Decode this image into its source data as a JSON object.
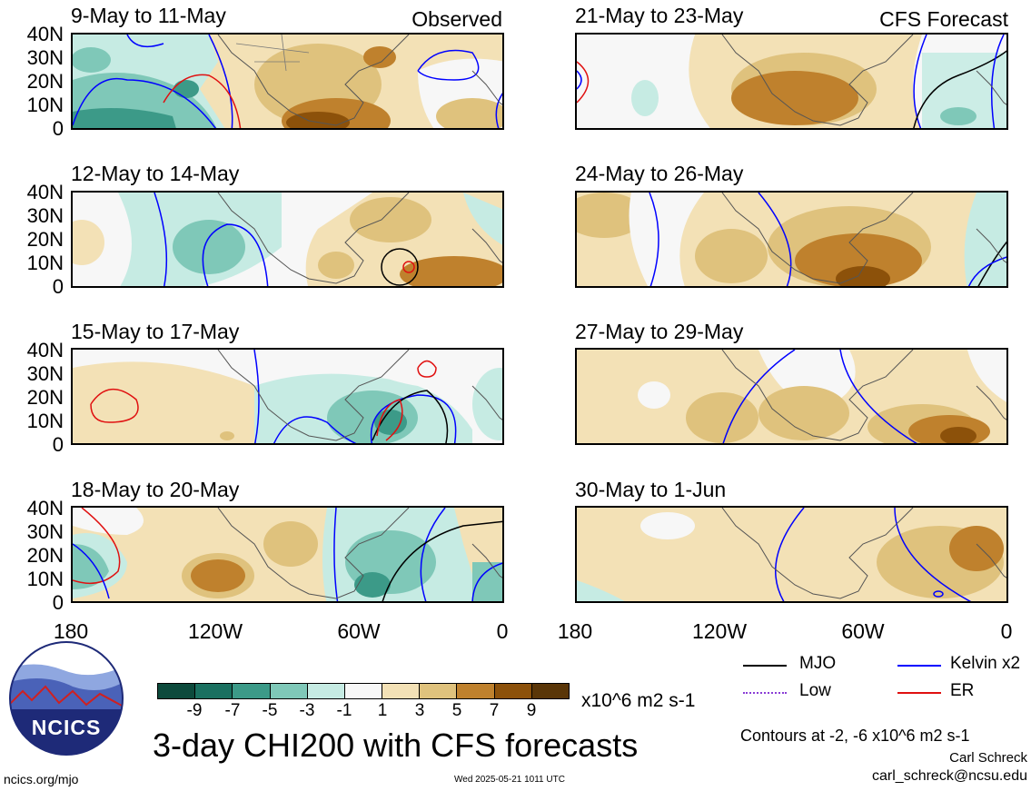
{
  "panels": [
    {
      "title": "9-May to 11-May",
      "tag": "Observed"
    },
    {
      "title": "12-May to 14-May",
      "tag": ""
    },
    {
      "title": "15-May to 17-May",
      "tag": ""
    },
    {
      "title": "18-May to 20-May",
      "tag": ""
    },
    {
      "title": "21-May to 23-May",
      "tag": "CFS Forecast"
    },
    {
      "title": "24-May to 26-May",
      "tag": ""
    },
    {
      "title": "27-May to 29-May",
      "tag": ""
    },
    {
      "title": "30-May to 1-Jun",
      "tag": ""
    }
  ],
  "lat_labels": [
    "40N",
    "30N",
    "20N",
    "10N",
    "0"
  ],
  "lon_labels": [
    "180",
    "120W",
    "60W",
    "0"
  ],
  "colorbar": {
    "labels": [
      "-9",
      "-7",
      "-5",
      "-3",
      "-1",
      "1",
      "3",
      "5",
      "7",
      "9"
    ],
    "colors": [
      "#0d4a3c",
      "#1a7060",
      "#3c9a88",
      "#7fc8b8",
      "#c6ebe3",
      "#f7f7f7",
      "#f3e1b6",
      "#dfc27d",
      "#bf812d",
      "#8c510a",
      "#5a3608"
    ],
    "units": "x10^6 m2 s-1"
  },
  "legend": [
    {
      "label": "MJO",
      "color": "#000000"
    },
    {
      "label": "Kelvin x2",
      "color": "#0000ff"
    },
    {
      "label": "Low",
      "color": "#8a3dd6"
    },
    {
      "label": "ER",
      "color": "#e01010"
    }
  ],
  "main_title": "3-day CHI200 with CFS forecasts",
  "contour_note": "Contours at -2, -6 x10^6 m2 s-1",
  "author": "Carl Schreck",
  "email": "carl_schreck@ncsu.edu",
  "site": "ncics.org/mjo",
  "timestamp": "Wed 2025-05-21 1011 UTC",
  "logo_text": "NCICS"
}
